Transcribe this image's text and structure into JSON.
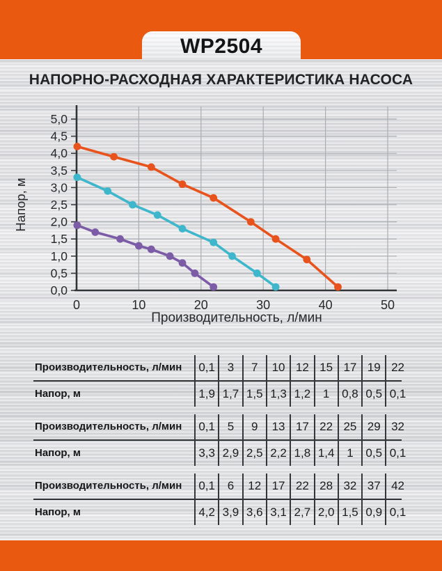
{
  "header": {
    "model": "WP2504"
  },
  "title": "НАПОРНО-РАСХОДНАЯ ХАРАКТЕРИСТИКА НАСОСА",
  "colors": {
    "band_orange": "#E95A10",
    "series_purple": "#7C5BA7",
    "series_cyan": "#3EB6CB",
    "series_orange": "#E8531D",
    "axis_dark": "#303436",
    "grid_gray": "#A9AEB2"
  },
  "chart_data": {
    "type": "line",
    "title": "",
    "xlabel": "Производительность, л/мин",
    "ylabel": "Напор, м",
    "xlim": [
      0,
      50
    ],
    "ylim": [
      0,
      5
    ],
    "x_ticks": [
      0,
      10,
      20,
      30,
      40,
      50
    ],
    "x_tick_labels": [
      "0",
      "10",
      "20",
      "30",
      "40",
      "50"
    ],
    "y_ticks": [
      0,
      0.5,
      1,
      1.5,
      2,
      2.5,
      3,
      3.5,
      4,
      4.5,
      5
    ],
    "y_tick_labels": [
      "0,0",
      "0,5",
      "1,0",
      "1,5",
      "2,0",
      "2,5",
      "3,0",
      "3,5",
      "4,0",
      "4,5",
      "5,0"
    ],
    "grid": true,
    "legend": false,
    "series": [
      {
        "name": "curve-low-head",
        "color": "#7C5BA7",
        "points": [
          [
            0.1,
            1.9
          ],
          [
            3,
            1.7
          ],
          [
            7,
            1.5
          ],
          [
            10,
            1.3
          ],
          [
            12,
            1.2
          ],
          [
            15,
            1.0
          ],
          [
            17,
            0.8
          ],
          [
            19,
            0.5
          ],
          [
            22,
            0.1
          ]
        ]
      },
      {
        "name": "curve-mid-head",
        "color": "#3EB6CB",
        "points": [
          [
            0.1,
            3.3
          ],
          [
            5,
            2.9
          ],
          [
            9,
            2.5
          ],
          [
            13,
            2.2
          ],
          [
            17,
            1.8
          ],
          [
            22,
            1.4
          ],
          [
            25,
            1.0
          ],
          [
            29,
            0.5
          ],
          [
            32,
            0.1
          ]
        ]
      },
      {
        "name": "curve-high-head",
        "color": "#E8531D",
        "points": [
          [
            0.1,
            4.2
          ],
          [
            6,
            3.9
          ],
          [
            12,
            3.6
          ],
          [
            17,
            3.1
          ],
          [
            22,
            2.7
          ],
          [
            28,
            2.0
          ],
          [
            32,
            1.5
          ],
          [
            37,
            0.9
          ],
          [
            42,
            0.1
          ]
        ]
      }
    ]
  },
  "tables": [
    {
      "rows": [
        {
          "label": "Производительность, л/мин",
          "values": [
            "0,1",
            "3",
            "7",
            "10",
            "12",
            "15",
            "17",
            "19",
            "22"
          ]
        },
        {
          "label": "Напор, м",
          "values": [
            "1,9",
            "1,7",
            "1,5",
            "1,3",
            "1,2",
            "1",
            "0,8",
            "0,5",
            "0,1"
          ]
        }
      ]
    },
    {
      "rows": [
        {
          "label": "Производительность, л/мин",
          "values": [
            "0,1",
            "5",
            "9",
            "13",
            "17",
            "22",
            "25",
            "29",
            "32"
          ]
        },
        {
          "label": "Напор, м",
          "values": [
            "3,3",
            "2,9",
            "2,5",
            "2,2",
            "1,8",
            "1,4",
            "1",
            "0,5",
            "0,1"
          ]
        }
      ]
    },
    {
      "rows": [
        {
          "label": "Производительность, л/мин",
          "values": [
            "0,1",
            "6",
            "12",
            "17",
            "22",
            "28",
            "32",
            "37",
            "42"
          ]
        },
        {
          "label": "Напор, м",
          "values": [
            "4,2",
            "3,9",
            "3,6",
            "3,1",
            "2,7",
            "2,0",
            "1,5",
            "0,9",
            "0,1"
          ]
        }
      ]
    }
  ]
}
